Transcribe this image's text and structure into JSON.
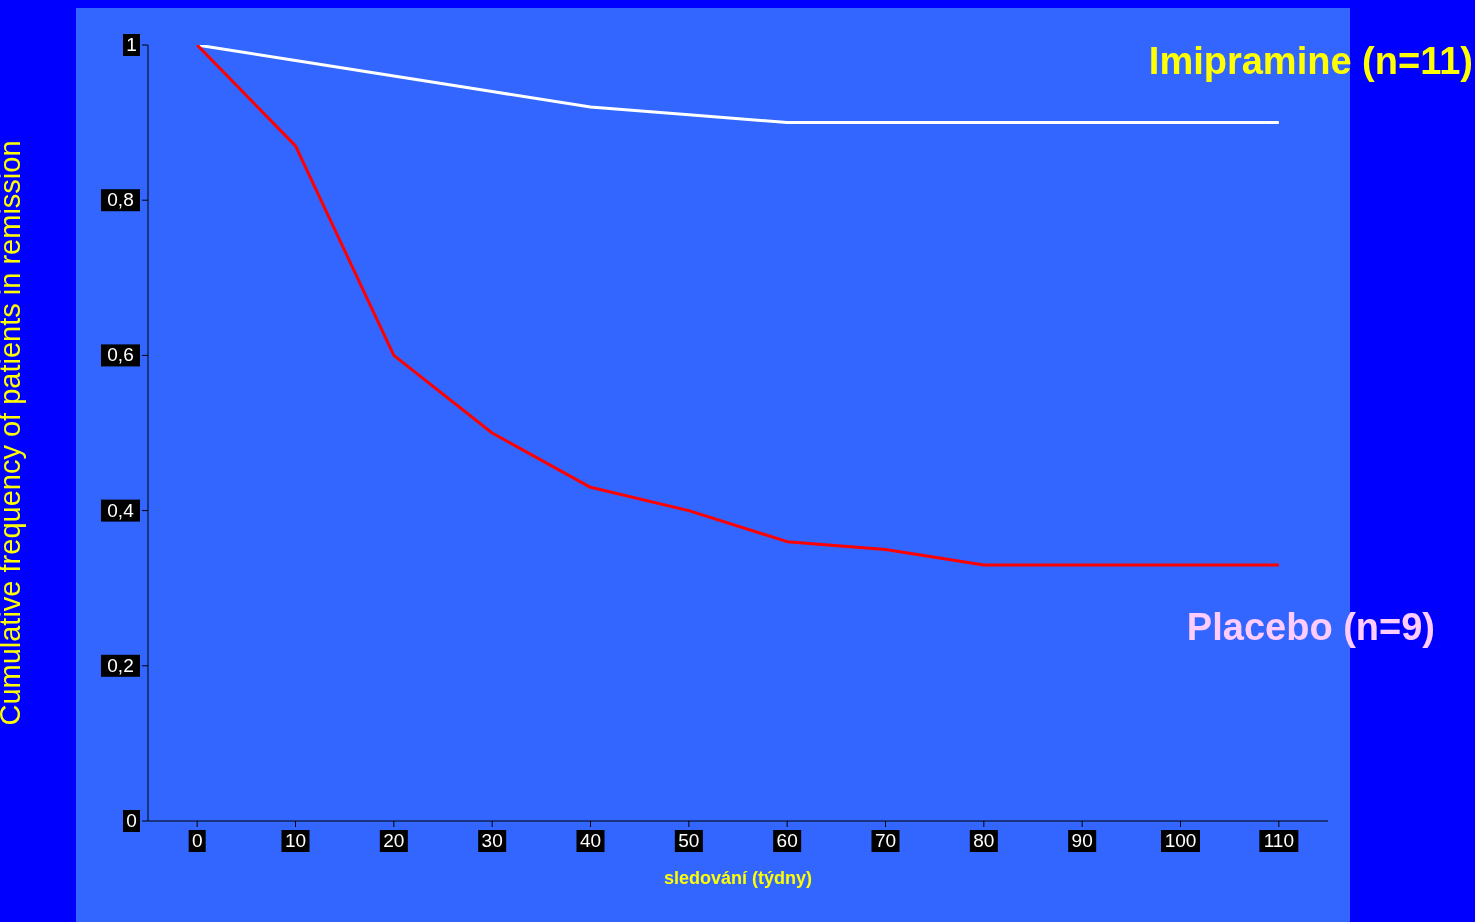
{
  "chart_data": {
    "type": "line",
    "xlabel": "sledování (týdny)",
    "ylabel": "Cumulative frequency of patients in remission",
    "categories": [
      "0",
      "10",
      "20",
      "30",
      "40",
      "50",
      "60",
      "70",
      "80",
      "90",
      "100",
      "110"
    ],
    "series": [
      {
        "name": "Imipramine (n=11)",
        "color": "#ffffff",
        "values": [
          1,
          0.98,
          0.96,
          0.94,
          0.92,
          0.91,
          0.9,
          0.9,
          0.9,
          0.9,
          0.9,
          0.9
        ]
      },
      {
        "name": "Placebo (n=9)",
        "color": "#ff0000",
        "values": [
          1,
          0.87,
          0.6,
          0.5,
          0.43,
          0.4,
          0.36,
          0.35,
          0.33,
          0.33,
          0.33,
          0.33
        ]
      }
    ],
    "ylim": [
      0,
      1
    ],
    "yticks": [
      0,
      {
        "value": 0.2,
        "label": "0,2"
      },
      {
        "value": 0.4,
        "label": "0,4"
      },
      {
        "value": 0.6,
        "label": "0,6"
      },
      {
        "value": 0.8,
        "label": "0,8"
      },
      1
    ],
    "grid": false,
    "legend": false,
    "marker": "none",
    "line_style": "solid"
  }
}
